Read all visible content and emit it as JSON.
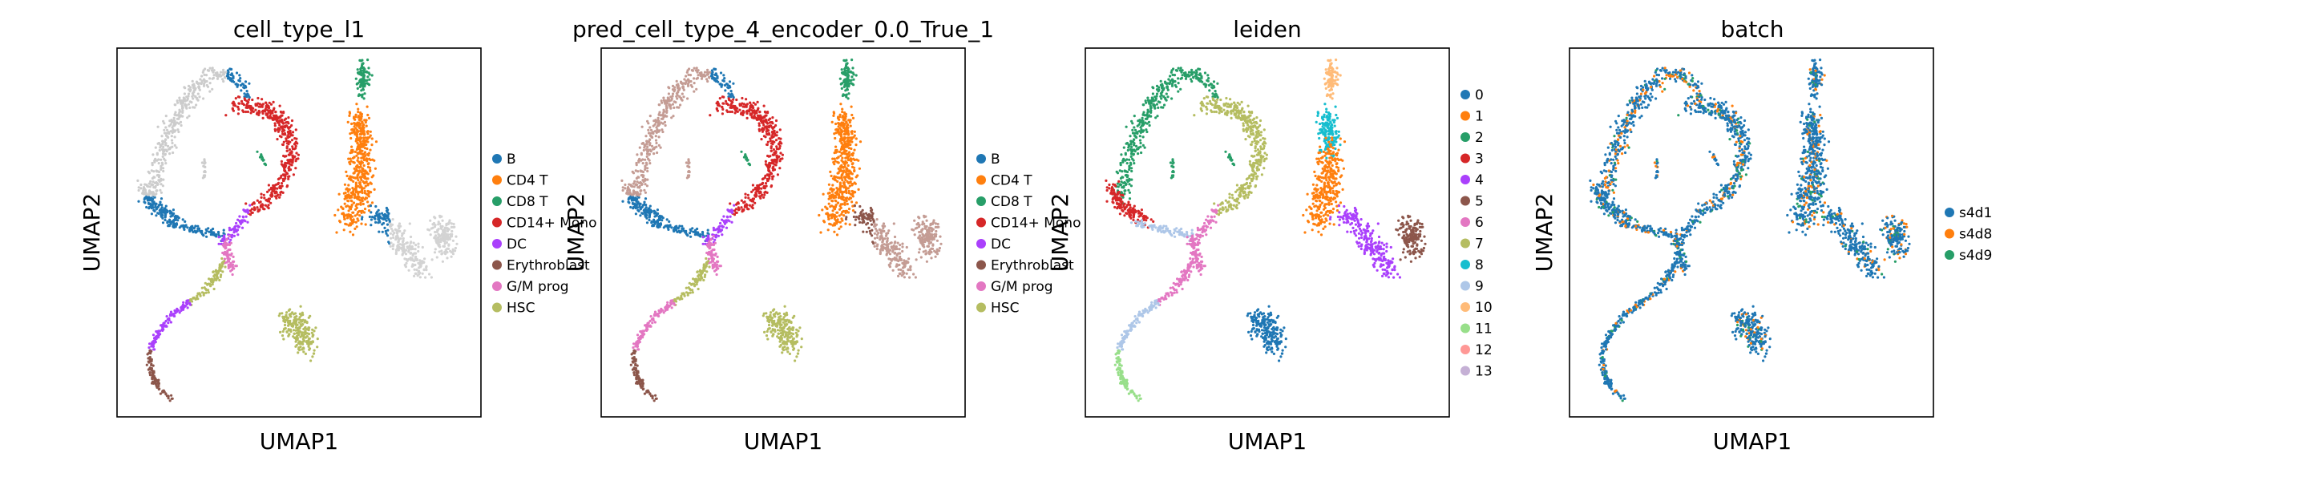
{
  "figure": {
    "panels": [
      {
        "title": "cell_type_l1",
        "xlabel": "UMAP1",
        "ylabel": "UMAP2"
      },
      {
        "title": "pred_cell_type_4_encoder_0.0_True_1",
        "xlabel": "UMAP1",
        "ylabel": "UMAP2"
      },
      {
        "title": "leiden",
        "xlabel": "UMAP1",
        "ylabel": "UMAP2"
      },
      {
        "title": "batch",
        "xlabel": "UMAP1",
        "ylabel": "UMAP2"
      }
    ]
  },
  "chart_data": [
    {
      "type": "scatter",
      "title": "cell_type_l1",
      "xlabel": "UMAP1",
      "ylabel": "UMAP2",
      "grid": false,
      "legend_placement": "right-outside",
      "categories": [
        "B",
        "CD4 T",
        "CD8 T",
        "CD14+ Mono",
        "DC",
        "Erythroblast",
        "G/M prog",
        "HSC"
      ],
      "colors": [
        "#1f77b4",
        "#ff7f0e",
        "#279e68",
        "#d62728",
        "#aa40fc",
        "#8c564b",
        "#e377c2",
        "#b5bd61"
      ]
    },
    {
      "type": "scatter",
      "title": "pred_cell_type_4_encoder_0.0_True_1",
      "xlabel": "UMAP1",
      "ylabel": "UMAP2",
      "grid": false,
      "legend_placement": "right-outside",
      "categories": [
        "B",
        "CD4 T",
        "CD8 T",
        "CD14+ Mono",
        "DC",
        "Erythroblast",
        "G/M prog",
        "HSC"
      ],
      "colors": [
        "#1f77b4",
        "#ff7f0e",
        "#279e68",
        "#d62728",
        "#aa40fc",
        "#8c564b",
        "#e377c2",
        "#b5bd61"
      ]
    },
    {
      "type": "scatter",
      "title": "leiden",
      "xlabel": "UMAP1",
      "ylabel": "UMAP2",
      "grid": false,
      "legend_placement": "right-outside",
      "categories": [
        "0",
        "1",
        "2",
        "3",
        "4",
        "5",
        "6",
        "7",
        "8",
        "9",
        "10",
        "11",
        "12",
        "13"
      ],
      "colors": [
        "#1f77b4",
        "#ff7f0e",
        "#279e68",
        "#d62728",
        "#aa40fc",
        "#8c564b",
        "#e377c2",
        "#b5bd61",
        "#17becf",
        "#aec7e8",
        "#ffbb78",
        "#98df8a",
        "#ff9896",
        "#c5b0d5"
      ]
    },
    {
      "type": "scatter",
      "title": "batch",
      "xlabel": "UMAP1",
      "ylabel": "UMAP2",
      "grid": false,
      "legend_placement": "right-outside",
      "categories": [
        "s4d1",
        "s4d8",
        "s4d9"
      ],
      "colors": [
        "#1f77b4",
        "#ff7f0e",
        "#279e68"
      ]
    }
  ]
}
